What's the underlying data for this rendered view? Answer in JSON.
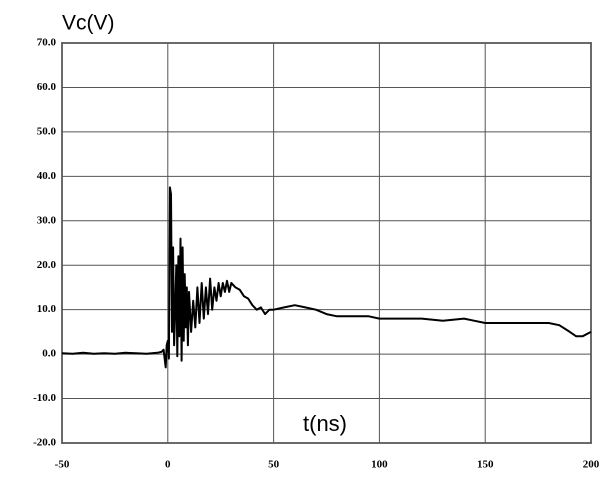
{
  "chart_data": {
    "type": "line",
    "y_label": "Vc(V)",
    "x_label": "t(ns)",
    "x": [
      -50,
      -45,
      -40,
      -35,
      -30,
      -25,
      -20,
      -15,
      -10,
      -5,
      -3,
      -2,
      -1,
      -0.5,
      0,
      0.5,
      1,
      1.5,
      2,
      2.5,
      3,
      3.5,
      4,
      4.5,
      5,
      5.5,
      6,
      6.5,
      7,
      7.5,
      8,
      8.5,
      9,
      9.5,
      10,
      11,
      12,
      13,
      14,
      15,
      16,
      17,
      18,
      19,
      20,
      21,
      22,
      23,
      24,
      25,
      26,
      27,
      28,
      29,
      30,
      32,
      34,
      36,
      38,
      40,
      42,
      44,
      46,
      48,
      50,
      55,
      60,
      65,
      70,
      75,
      80,
      85,
      90,
      95,
      100,
      110,
      120,
      130,
      140,
      145,
      150,
      160,
      170,
      180,
      185,
      190,
      193,
      196,
      200
    ],
    "values": [
      0.2,
      0.1,
      0.3,
      0.1,
      0.2,
      0.1,
      0.3,
      0.2,
      0.1,
      0.3,
      0.5,
      1,
      -3,
      2,
      3,
      -1,
      37.5,
      36,
      5,
      24,
      2,
      10,
      20,
      -0.5,
      22,
      4,
      26,
      -1.5,
      24,
      3,
      18,
      6,
      15,
      2,
      14,
      5,
      12,
      6,
      15,
      7,
      16,
      8,
      15,
      9,
      17,
      10,
      15,
      12,
      16,
      13,
      16,
      14,
      16.5,
      14,
      16,
      15,
      14.5,
      13,
      12.5,
      11,
      10,
      10.5,
      9,
      10,
      10,
      10.5,
      11,
      10.5,
      10,
      9,
      8.5,
      8.5,
      8.5,
      8.5,
      8,
      8,
      8,
      7.5,
      8,
      7.5,
      7,
      7,
      7,
      7,
      6.5,
      5,
      4,
      4,
      5
    ],
    "color": "#000000",
    "xlim": [
      -50,
      200
    ],
    "xticks": [
      -50,
      0,
      50,
      100,
      150,
      200
    ],
    "ylim": [
      -20,
      70
    ],
    "yticks": [
      {
        "value": -20,
        "label": "-20.0"
      },
      {
        "value": -10,
        "label": "-10.0"
      },
      {
        "value": 0,
        "label": "0.0"
      },
      {
        "value": 10,
        "label": "10.0"
      },
      {
        "value": 20,
        "label": "20.0"
      },
      {
        "value": 30,
        "label": "30.0"
      },
      {
        "value": 40,
        "label": "40.0"
      },
      {
        "value": 50,
        "label": "50.0"
      },
      {
        "value": 60,
        "label": "60.0"
      },
      {
        "value": 70,
        "label": "70.0"
      }
    ],
    "grid": true
  }
}
